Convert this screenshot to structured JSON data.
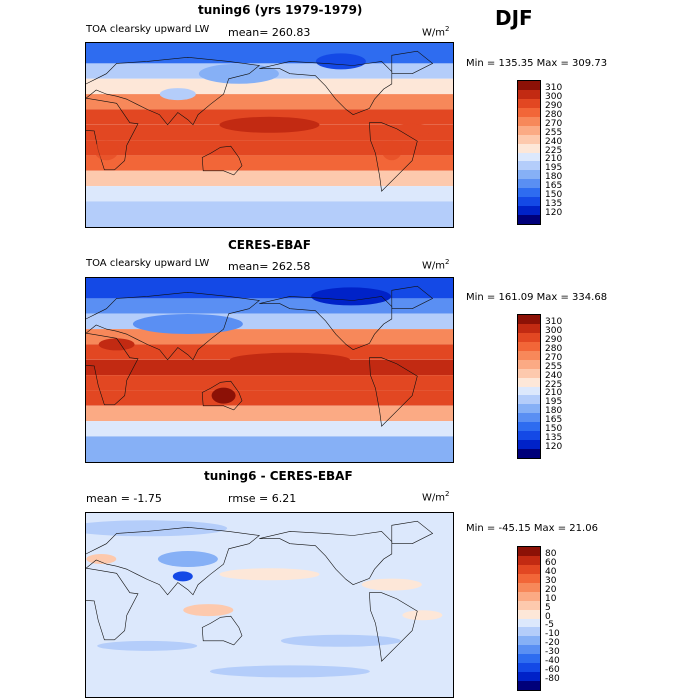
{
  "season": "DJF",
  "colors": {
    "abs": [
      "#00007a",
      "#0022c8",
      "#1449e6",
      "#2e6cf0",
      "#5a8ff3",
      "#86b0f6",
      "#b4cdfa",
      "#dce8fc",
      "#fde7d8",
      "#fdc9ad",
      "#fbaa84",
      "#f7885a",
      "#f26638",
      "#e24722",
      "#c22a12",
      "#8c1106"
    ],
    "diff": [
      "#00007a",
      "#0022c8",
      "#1449e6",
      "#2e6cf0",
      "#5a8ff3",
      "#86b0f6",
      "#b4cdfa",
      "#dce8fc",
      "#fde7d8",
      "#fdc9ad",
      "#fbaa84",
      "#f7885a",
      "#f26638",
      "#e24722",
      "#c22a12",
      "#8c1106"
    ]
  },
  "panels": [
    {
      "title": "tuning6 (yrs 1979-1979)",
      "left_label": "TOA clearsky upward LW",
      "mean_text": "mean= 260.83",
      "rmse_text": "",
      "units": "W/m",
      "units_sup": "2",
      "minmax": "Min = 135.35 Max = 309.73",
      "levels": [
        "310",
        "300",
        "290",
        "280",
        "270",
        "255",
        "240",
        "225",
        "210",
        "195",
        "180",
        "165",
        "150",
        "135",
        "120"
      ],
      "palette": "abs"
    },
    {
      "title": "CERES-EBAF",
      "left_label": "TOA clearsky upward LW",
      "mean_text": "mean= 262.58",
      "rmse_text": "",
      "units": "W/m",
      "units_sup": "2",
      "minmax": "Min = 161.09 Max = 334.68",
      "levels": [
        "310",
        "300",
        "290",
        "280",
        "270",
        "255",
        "240",
        "225",
        "210",
        "195",
        "180",
        "165",
        "150",
        "135",
        "120"
      ],
      "palette": "abs"
    },
    {
      "title": "tuning6 - CERES-EBAF",
      "left_label": "mean =  -1.75",
      "mean_text": "",
      "rmse_text": "rmse =   6.21",
      "units": "W/m",
      "units_sup": "2",
      "minmax": "Min = -45.15 Max =  21.06",
      "levels": [
        "80",
        "60",
        "40",
        "30",
        "20",
        "10",
        "5",
        "0",
        "-5",
        "-10",
        "-20",
        "-30",
        "-40",
        "-60",
        "-80"
      ],
      "palette": "diff"
    }
  ],
  "chart_data": [
    {
      "type": "heatmap",
      "title": "tuning6 (yrs 1979-1979)",
      "subtitle": "TOA clearsky upward LW",
      "mean": 260.83,
      "min": 135.35,
      "max": 309.73,
      "units": "W/m2",
      "contour_levels": [
        120,
        135,
        150,
        165,
        180,
        195,
        210,
        225,
        240,
        255,
        270,
        280,
        290,
        300,
        310
      ]
    },
    {
      "type": "heatmap",
      "title": "CERES-EBAF",
      "subtitle": "TOA clearsky upward LW",
      "mean": 262.58,
      "min": 161.09,
      "max": 334.68,
      "units": "W/m2",
      "contour_levels": [
        120,
        135,
        150,
        165,
        180,
        195,
        210,
        225,
        240,
        255,
        270,
        280,
        290,
        300,
        310
      ]
    },
    {
      "type": "heatmap",
      "title": "tuning6 - CERES-EBAF",
      "mean": -1.75,
      "rmse": 6.21,
      "min": -45.15,
      "max": 21.06,
      "units": "W/m2",
      "contour_levels": [
        -80,
        -60,
        -40,
        -30,
        -20,
        -10,
        -5,
        0,
        5,
        10,
        20,
        30,
        40,
        60,
        80
      ]
    }
  ]
}
